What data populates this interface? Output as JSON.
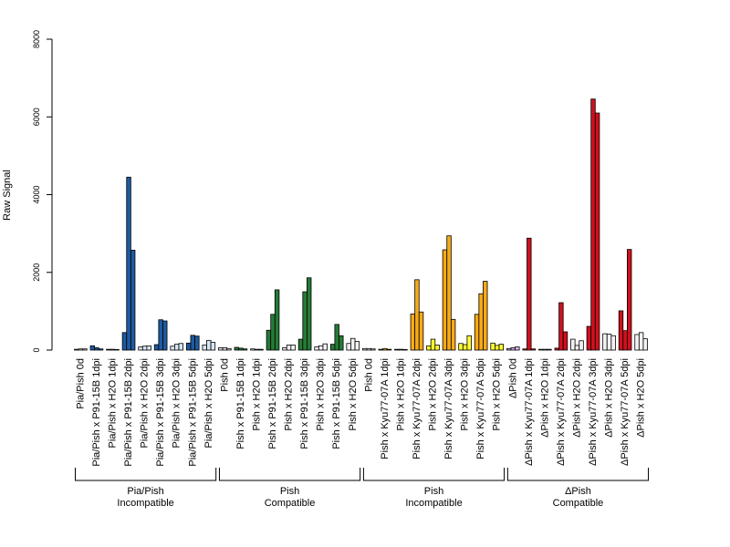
{
  "chart_data": {
    "type": "bar",
    "ylabel": "Raw Signal",
    "ylim": [
      0,
      8000
    ],
    "yticks": [
      "0",
      "2000",
      "4000",
      "6000",
      "8000"
    ],
    "grid": false,
    "categories": [
      "Pia/Pish 0d",
      "Pia/Pish x P91-15B 1dpi",
      "Pia/Pish x H2O 1dpi",
      "Pia/Pish x P91-15B 2dpi",
      "Pia/Pish x H2O 2dpi",
      "Pia/Pish x P91-15B 3dpi",
      "Pia/Pish x H2O 3dpi",
      "Pia/Pish x P91-15B 5dpi",
      "Pia/Pish x H2O 5dpi",
      "Pish 0d",
      "Pish x P91-15B 1dpi",
      "Pish x H2O 1dpi",
      "Pish x P91-15B 2dpi",
      "Pish x H2O 2dpi",
      "Pish x P91-15B 3dpi",
      "Pish x H2O 3dpi",
      "Pish x P91-15B 5dpi",
      "Pish x H2O 5dpi",
      "Pish 0d",
      "Pish x Kyu77-07A 1dpi",
      "Pish x H2O 1dpi",
      "Pish x Kyu77-07A 2dpi",
      "Pish x H2O 2dpi",
      "Pish x Kyu77-07A 3dpi",
      "Pish x H2O 3dpi",
      "Pish x Kyu77-07A 5dpi",
      "Pish x H2O 5dpi",
      "ΔPish 0d",
      "ΔPish x Kyu77-07A 1dpi",
      "ΔPish x H2O 1dpi",
      "ΔPish x Kyu77-07A 2dpi",
      "ΔPish x H2O 2dpi",
      "ΔPish x Kyu77-07A 3dpi",
      "ΔPish x H2O 3dpi",
      "ΔPish x Kyu77-07A 5dpi",
      "ΔPish x H2O 5dpi"
    ],
    "bars_per_category": [
      [
        20,
        30,
        30
      ],
      [
        110,
        60,
        30
      ],
      [
        20,
        20,
        15
      ],
      [
        450,
        4450,
        2570
      ],
      [
        80,
        100,
        110
      ],
      [
        140,
        780,
        750
      ],
      [
        100,
        150,
        170
      ],
      [
        180,
        380,
        360
      ],
      [
        130,
        250,
        200
      ],
      [
        60,
        60,
        40
      ],
      [
        70,
        50,
        30
      ],
      [
        30,
        20,
        20
      ],
      [
        510,
        920,
        1550
      ],
      [
        60,
        130,
        130
      ],
      [
        280,
        1500,
        1860
      ],
      [
        80,
        110,
        160
      ],
      [
        150,
        660,
        370
      ],
      [
        170,
        300,
        220
      ],
      [
        40,
        40,
        30
      ],
      [
        20,
        40,
        20
      ],
      [
        20,
        20,
        15
      ],
      [
        930,
        1810,
        980
      ],
      [
        110,
        280,
        130
      ],
      [
        2580,
        2940,
        790
      ],
      [
        170,
        140,
        370
      ],
      [
        920,
        1450,
        1770
      ],
      [
        180,
        120,
        150
      ],
      [
        40,
        60,
        80
      ],
      [
        30,
        2880,
        30
      ],
      [
        20,
        20,
        20
      ],
      [
        50,
        1220,
        470
      ],
      [
        280,
        120,
        240
      ],
      [
        610,
        6460,
        6100
      ],
      [
        420,
        410,
        370
      ],
      [
        1010,
        500,
        2590
      ],
      [
        400,
        450,
        290
      ]
    ],
    "colors_per_category": [
      "#f2f2f2",
      "#1f5aa0",
      "#f2f2f2",
      "#1f5aa0",
      "#f2f2f2",
      "#1f5aa0",
      "#f2f2f2",
      "#1f5aa0",
      "#f2f2f2",
      "#f2f2f2",
      "#267a36",
      "#f2f2f2",
      "#267a36",
      "#f2f2f2",
      "#267a36",
      "#f2f2f2",
      "#267a36",
      "#f2f2f2",
      "#f2f2f2",
      "#f7aa18",
      "#f2f2f2",
      "#f7aa18",
      "#f2f2f2",
      "#f7aa18",
      "#f2f2f2",
      "#f7aa18",
      "#f2f2f2",
      "#f2f2f2",
      "#d0101e",
      "#f2f2f2",
      "#d0101e",
      "#f2f2f2",
      "#d0101e",
      "#f2f2f2",
      "#d0101e",
      "#f2f2f2"
    ],
    "control_colors_per_category": [
      "#e8e8e8",
      "#1f5aa0",
      "#d8e6f5",
      "#1f5aa0",
      "#d8e6f5",
      "#1f5aa0",
      "#d8e6f5",
      "#1f5aa0",
      "#d8e6f5",
      "#e8e8e8",
      "#267a36",
      "#d8f0dc",
      "#267a36",
      "#d8f0dc",
      "#267a36",
      "#d8f0dc",
      "#267a36",
      "#d8f0dc",
      "#e8e8e8",
      "#f7aa18",
      "#ffff33",
      "#f7aa18",
      "#ffff33",
      "#f7aa18",
      "#ffff33",
      "#f7aa18",
      "#ffff33",
      "#d8b6f0",
      "#d0101e",
      "#ff99ee",
      "#d0101e",
      "#ff99ee",
      "#d0101e",
      "#ff99ee",
      "#d0101e",
      "#ff99ee"
    ],
    "groups": [
      {
        "line1": "Pia/Pish",
        "line2": "Incompatible"
      },
      {
        "line1": "Pish",
        "line2": "Compatible"
      },
      {
        "line1": "Pish",
        "line2": "Incompatible"
      },
      {
        "line1": "ΔPish",
        "line2": "Compatible"
      }
    ]
  }
}
